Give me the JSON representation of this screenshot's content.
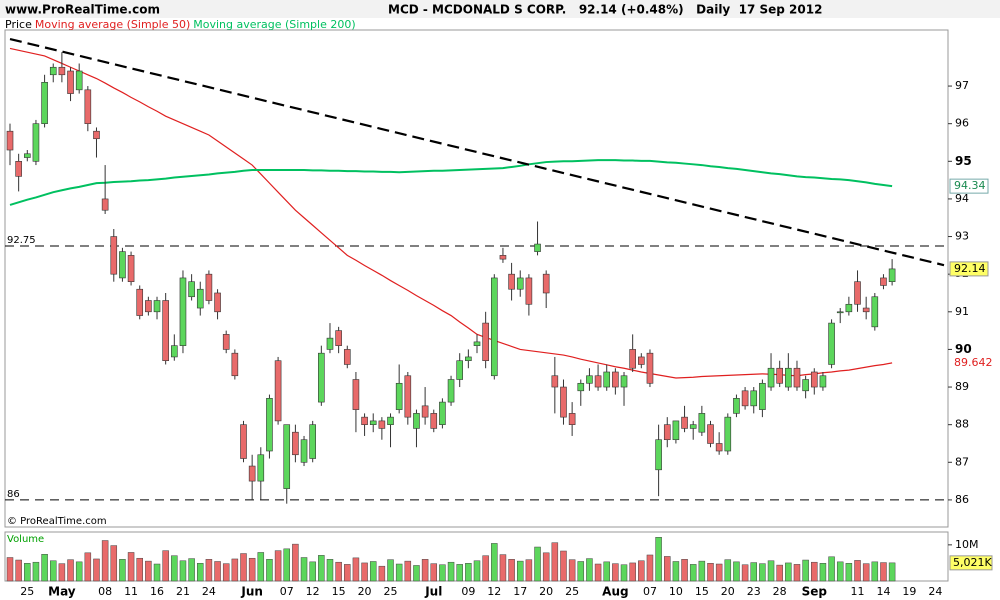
{
  "chart_data": {
    "type": "candlestick",
    "site": "www.ProRealTime.com",
    "title": "MCD - MCDONALD S CORP.   92.14 (+0.48%)   Daily  17 Sep 2012",
    "copyright": "© ProRealTime.com",
    "legend_label": "Price",
    "up_color": "#5cd65c",
    "down_color": "#e86a6a",
    "categories": [
      null,
      null,
      "25",
      null,
      null,
      null,
      "May",
      null,
      null,
      null,
      null,
      "08",
      null,
      null,
      "11",
      null,
      null,
      "16",
      null,
      null,
      "21",
      null,
      null,
      "24",
      null,
      null,
      null,
      null,
      "Jun",
      null,
      null,
      null,
      "07",
      null,
      null,
      "12",
      null,
      null,
      "15",
      null,
      null,
      "20",
      null,
      null,
      "25",
      null,
      null,
      null,
      null,
      "Jul",
      null,
      null,
      null,
      "09",
      null,
      null,
      "12",
      null,
      null,
      "17",
      null,
      null,
      "20",
      null,
      null,
      "25",
      null,
      null,
      null,
      null,
      "Aug",
      null,
      null,
      null,
      "07",
      null,
      null,
      "10",
      null,
      null,
      "15",
      null,
      null,
      "20",
      null,
      null,
      "23",
      null,
      null,
      "28",
      null,
      null,
      null,
      "Sep",
      null,
      null,
      null,
      null,
      "11",
      null,
      null,
      "14",
      null,
      null,
      "19",
      null,
      null,
      "24",
      null
    ],
    "open": [
      95.8,
      95.0,
      95.1,
      95.0,
      96.0,
      97.3,
      97.5,
      97.4,
      96.9,
      96.9,
      95.8,
      94.0,
      93.0,
      91.9,
      92.5,
      91.6,
      91.3,
      91.0,
      91.3,
      89.8,
      90.1,
      91.4,
      91.1,
      92.0,
      91.5,
      90.4,
      89.9,
      88.0,
      86.9,
      86.5,
      87.3,
      89.7,
      86.3,
      87.8,
      87.0,
      87.1,
      88.6,
      90.0,
      90.5,
      90.0,
      89.2,
      88.2,
      88.0,
      88.1,
      88.0,
      88.4,
      89.3,
      87.9,
      88.5,
      88.3,
      88.0,
      88.6,
      89.2,
      89.7,
      90.1,
      90.7,
      89.3,
      92.5,
      92.0,
      91.6,
      91.9,
      92.6,
      92.0,
      89.3,
      89.0,
      88.3,
      88.9,
      89.1,
      89.3,
      89.0,
      89.4,
      89.0,
      90.0,
      89.8,
      89.9,
      86.8,
      88.0,
      87.6,
      88.2,
      87.9,
      87.8,
      88.0,
      87.5,
      87.3,
      88.3,
      88.9,
      88.5,
      88.4,
      89.0,
      89.5,
      89.0,
      89.5,
      88.9,
      89.4,
      89.0,
      89.6,
      91.0,
      91.0,
      91.8,
      91.1,
      90.6,
      91.9,
      91.8,
      null,
      null,
      null,
      null,
      null,
      null
    ],
    "high": [
      96.0,
      95.2,
      95.3,
      96.1,
      97.3,
      97.6,
      97.9,
      97.5,
      97.6,
      97.0,
      95.9,
      94.9,
      93.2,
      92.7,
      92.6,
      91.7,
      91.4,
      91.4,
      91.5,
      90.4,
      92.1,
      92.0,
      91.8,
      92.1,
      91.6,
      90.5,
      90.0,
      88.1,
      87.2,
      87.4,
      88.8,
      89.8,
      88.0,
      88.0,
      87.7,
      88.1,
      90.1,
      90.7,
      90.6,
      90.1,
      89.4,
      88.3,
      88.3,
      88.2,
      88.3,
      89.6,
      89.4,
      88.4,
      89.0,
      88.4,
      88.7,
      89.3,
      89.9,
      90.0,
      90.4,
      91.0,
      92.0,
      92.7,
      92.3,
      92.1,
      92.0,
      93.4,
      92.1,
      89.8,
      89.2,
      88.6,
      89.2,
      89.5,
      89.6,
      89.6,
      89.5,
      89.4,
      90.4,
      89.9,
      90.0,
      88.0,
      88.2,
      88.1,
      88.5,
      88.1,
      88.5,
      88.1,
      87.8,
      88.3,
      88.8,
      89.0,
      89.0,
      89.2,
      89.9,
      89.7,
      89.9,
      89.7,
      89.3,
      89.5,
      89.4,
      90.8,
      91.1,
      91.4,
      92.1,
      91.4,
      91.5,
      92.0,
      92.4,
      null,
      null,
      null,
      null,
      null,
      null
    ],
    "low": [
      94.9,
      94.2,
      95.0,
      94.9,
      95.9,
      97.1,
      97.1,
      96.6,
      96.8,
      95.8,
      95.1,
      93.6,
      91.8,
      91.8,
      91.7,
      90.8,
      90.9,
      90.8,
      89.6,
      89.7,
      89.9,
      91.3,
      90.9,
      91.2,
      90.8,
      89.9,
      89.2,
      87.0,
      86.0,
      86.0,
      87.1,
      88.0,
      85.9,
      87.0,
      86.9,
      87.0,
      88.5,
      89.9,
      89.9,
      89.5,
      87.8,
      87.7,
      87.8,
      87.6,
      87.4,
      88.3,
      88.0,
      87.4,
      88.0,
      87.8,
      87.9,
      88.5,
      89.0,
      89.5,
      89.9,
      89.5,
      89.2,
      92.3,
      91.3,
      91.4,
      90.9,
      92.5,
      91.1,
      88.3,
      88.0,
      87.7,
      88.5,
      88.9,
      88.9,
      88.9,
      88.8,
      88.5,
      89.4,
      89.5,
      89.0,
      86.1,
      87.4,
      87.5,
      87.8,
      87.6,
      87.7,
      87.4,
      87.2,
      87.2,
      88.2,
      88.4,
      88.3,
      88.2,
      88.9,
      89.0,
      88.9,
      88.9,
      88.7,
      88.8,
      88.9,
      89.5,
      90.7,
      90.9,
      91.0,
      90.8,
      90.5,
      91.6,
      91.7,
      null,
      null,
      null,
      null,
      null,
      null
    ],
    "close": [
      95.3,
      94.6,
      95.2,
      96.0,
      97.1,
      97.5,
      97.3,
      96.8,
      97.4,
      96.0,
      95.6,
      93.7,
      92.0,
      92.6,
      91.8,
      90.9,
      91.0,
      91.3,
      89.7,
      90.1,
      91.9,
      91.8,
      91.6,
      91.3,
      91.0,
      90.0,
      89.3,
      87.1,
      86.5,
      87.2,
      88.7,
      88.1,
      88.0,
      87.2,
      87.6,
      88.0,
      89.9,
      90.3,
      90.1,
      89.6,
      88.4,
      88.0,
      88.1,
      87.9,
      88.2,
      89.1,
      88.2,
      88.3,
      88.2,
      87.9,
      88.6,
      89.2,
      89.7,
      89.8,
      90.2,
      89.7,
      91.9,
      92.4,
      91.6,
      91.9,
      91.2,
      92.8,
      91.5,
      89.0,
      88.2,
      88.0,
      89.1,
      89.3,
      89.0,
      89.4,
      89.0,
      89.3,
      89.5,
      89.6,
      89.1,
      87.6,
      87.6,
      88.1,
      87.9,
      88.0,
      88.3,
      87.5,
      87.3,
      88.2,
      88.7,
      88.5,
      88.9,
      89.1,
      89.5,
      89.1,
      89.5,
      89.0,
      89.2,
      89.0,
      89.3,
      90.7,
      91.0,
      91.2,
      91.2,
      91.0,
      91.4,
      91.7,
      92.14,
      null,
      null,
      null,
      null,
      null,
      null
    ],
    "overlays": [
      {
        "name": "Moving average (Simple 50)",
        "color": "#e02020",
        "values": [
          98.0,
          97.95,
          97.9,
          97.85,
          97.8,
          97.7,
          97.6,
          97.5,
          97.4,
          97.3,
          97.2,
          97.08,
          96.95,
          96.83,
          96.7,
          96.58,
          96.45,
          96.33,
          96.2,
          96.1,
          96.0,
          95.9,
          95.8,
          95.7,
          95.54,
          95.38,
          95.22,
          95.06,
          94.9,
          94.66,
          94.42,
          94.18,
          93.94,
          93.7,
          93.5,
          93.3,
          93.1,
          92.9,
          92.7,
          92.5,
          92.37,
          92.23,
          92.1,
          91.97,
          91.83,
          91.7,
          91.57,
          91.43,
          91.3,
          91.17,
          91.03,
          90.9,
          90.73,
          90.57,
          90.4,
          90.32,
          90.24,
          90.16,
          90.08,
          90.0,
          89.97,
          89.94,
          89.91,
          89.88,
          89.85,
          89.8,
          89.74,
          89.69,
          89.64,
          89.59,
          89.54,
          89.5,
          89.45,
          89.4,
          89.36,
          89.32,
          89.28,
          89.24,
          89.25,
          89.26,
          89.28,
          89.29,
          89.3,
          89.31,
          89.32,
          89.33,
          89.34,
          89.35,
          89.34,
          89.33,
          89.31,
          89.3,
          89.33,
          89.35,
          89.38,
          89.4,
          89.43,
          89.45,
          89.49,
          89.53,
          89.57,
          89.6,
          89.642,
          null,
          null,
          null,
          null,
          null,
          null
        ]
      },
      {
        "name": "Moving average (Simple 200)",
        "color": "#00c060",
        "values": [
          93.84,
          93.91,
          93.98,
          94.04,
          94.11,
          94.18,
          94.23,
          94.28,
          94.32,
          94.37,
          94.42,
          94.43,
          94.45,
          94.46,
          94.47,
          94.49,
          94.5,
          94.52,
          94.54,
          94.57,
          94.59,
          94.61,
          94.63,
          94.65,
          94.68,
          94.7,
          94.72,
          94.75,
          94.77,
          94.77,
          94.77,
          94.77,
          94.77,
          94.77,
          94.77,
          94.76,
          94.76,
          94.75,
          94.75,
          94.74,
          94.74,
          94.73,
          94.73,
          94.72,
          94.72,
          94.71,
          94.72,
          94.73,
          94.74,
          94.75,
          94.75,
          94.76,
          94.77,
          94.78,
          94.79,
          94.8,
          94.81,
          94.82,
          94.85,
          94.88,
          94.92,
          94.95,
          94.98,
          94.99,
          95.0,
          95.0,
          95.01,
          95.02,
          95.03,
          95.03,
          95.03,
          95.02,
          95.02,
          95.01,
          95.01,
          94.99,
          94.97,
          94.96,
          94.94,
          94.92,
          94.9,
          94.87,
          94.85,
          94.82,
          94.8,
          94.77,
          94.74,
          94.71,
          94.68,
          94.66,
          94.63,
          94.6,
          94.58,
          94.57,
          94.55,
          94.53,
          94.52,
          94.5,
          94.47,
          94.44,
          94.4,
          94.37,
          94.34,
          null,
          null,
          null,
          null,
          null,
          null
        ]
      }
    ],
    "trendline": [
      98.25,
      92.24
    ],
    "hlines": [
      92.75,
      86
    ],
    "ylim": [
      85.28,
      98.49
    ],
    "yticks": [
      86,
      87,
      88,
      89,
      90,
      91,
      92,
      93,
      94,
      95,
      96,
      97
    ],
    "volume": {
      "name": "Volume",
      "ylim": [
        0,
        13.28
      ],
      "yticks": [
        {
          "value": 10,
          "label": "10M"
        }
      ],
      "last_value_label": "5,021K",
      "values": [
        6.5,
        5.8,
        4.9,
        5.2,
        7.4,
        5.6,
        4.8,
        5.9,
        5.3,
        7.8,
        6.1,
        11.2,
        9.8,
        6.0,
        7.9,
        6.3,
        5.5,
        4.7,
        8.4,
        7.0,
        5.6,
        6.2,
        4.9,
        6.0,
        5.4,
        4.8,
        6.1,
        7.6,
        6.3,
        7.9,
        6.0,
        8.4,
        8.9,
        10.2,
        6.5,
        5.3,
        7.1,
        6.0,
        5.2,
        4.6,
        6.4,
        5.0,
        5.4,
        4.1,
        5.9,
        4.7,
        5.5,
        4.3,
        6.0,
        4.8,
        4.5,
        5.2,
        4.6,
        4.9,
        5.6,
        7.0,
        10.4,
        7.3,
        6.0,
        5.5,
        5.9,
        9.4,
        7.8,
        10.6,
        8.3,
        5.9,
        5.4,
        6.2,
        4.7,
        5.3,
        4.8,
        4.5,
        5.0,
        5.6,
        7.2,
        12.1,
        6.8,
        5.4,
        6.0,
        4.6,
        5.5,
        4.9,
        4.7,
        5.9,
        5.3,
        4.5,
        5.1,
        4.8,
        5.6,
        4.4,
        5.0,
        4.6,
        5.8,
        5.2,
        4.9,
        6.7,
        5.3,
        4.9,
        5.7,
        4.8,
        5.3,
        5.1,
        5.021,
        null,
        null,
        null,
        null,
        null,
        null
      ]
    }
  }
}
